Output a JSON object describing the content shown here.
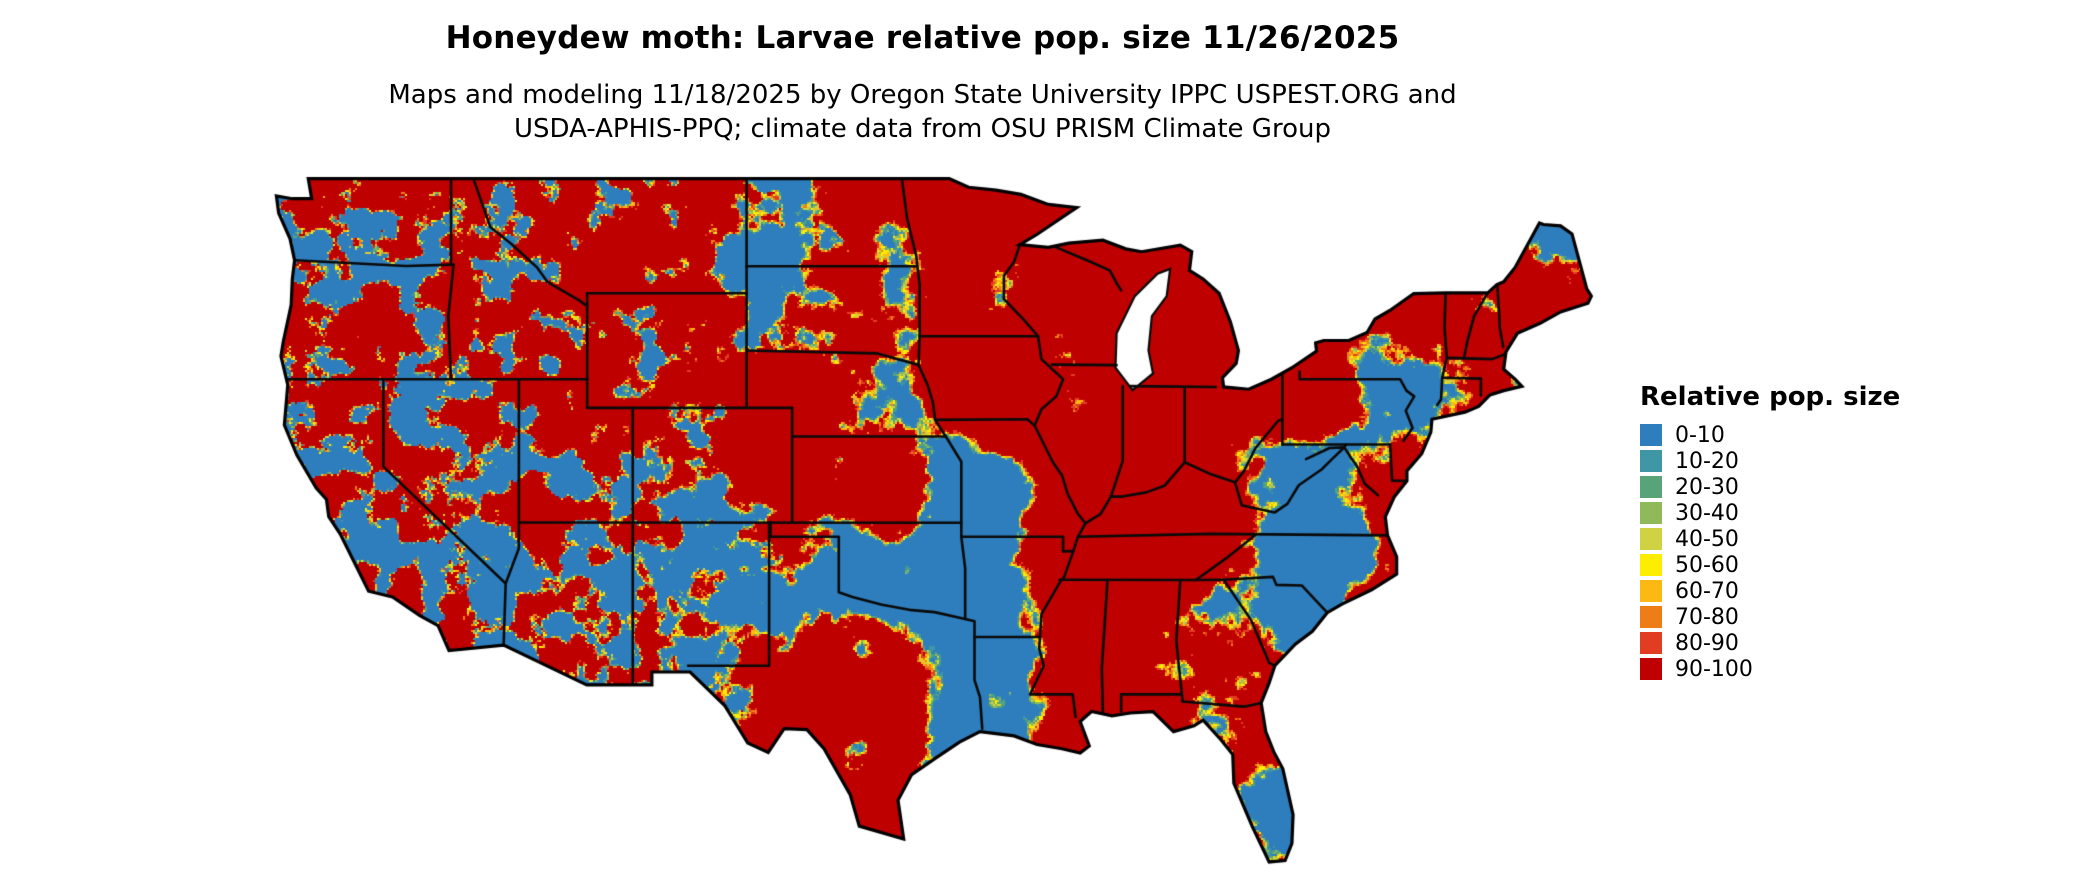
{
  "header": {
    "title": "Honeydew moth: Larvae relative pop. size 11/26/2025",
    "subtitle_line1": "Maps and modeling 11/18/2025 by Oregon State University IPPC USPEST.ORG and",
    "subtitle_line2": "USDA-APHIS-PPQ; climate data from OSU PRISM Climate Group"
  },
  "legend": {
    "title": "Relative pop. size",
    "items": [
      {
        "label": "0-10",
        "color": "#2e7ebd"
      },
      {
        "label": "10-20",
        "color": "#3f96a4"
      },
      {
        "label": "20-30",
        "color": "#58a377"
      },
      {
        "label": "30-40",
        "color": "#8fba5a"
      },
      {
        "label": "40-50",
        "color": "#cfd243"
      },
      {
        "label": "50-60",
        "color": "#fdee00"
      },
      {
        "label": "60-70",
        "color": "#fdb913"
      },
      {
        "label": "70-80",
        "color": "#ef7d17"
      },
      {
        "label": "80-90",
        "color": "#e23d22"
      },
      {
        "label": "90-100",
        "color": "#bf0000"
      }
    ]
  },
  "chart_data": {
    "type": "heatmap",
    "title": "Honeydew moth: Larvae relative pop. size 11/26/2025",
    "region": "Contiguous United States",
    "legend_title": "Relative pop. size",
    "bins": [
      "0-10",
      "10-20",
      "20-30",
      "30-40",
      "40-50",
      "50-60",
      "60-70",
      "70-80",
      "80-90",
      "90-100"
    ],
    "bin_colors": [
      "#2e7ebd",
      "#3f96a4",
      "#58a377",
      "#8fba5a",
      "#cfd243",
      "#fdee00",
      "#fdb913",
      "#ef7d17",
      "#e23d22",
      "#bf0000"
    ],
    "dominant_classes": [
      "90-100",
      "0-10"
    ]
  }
}
